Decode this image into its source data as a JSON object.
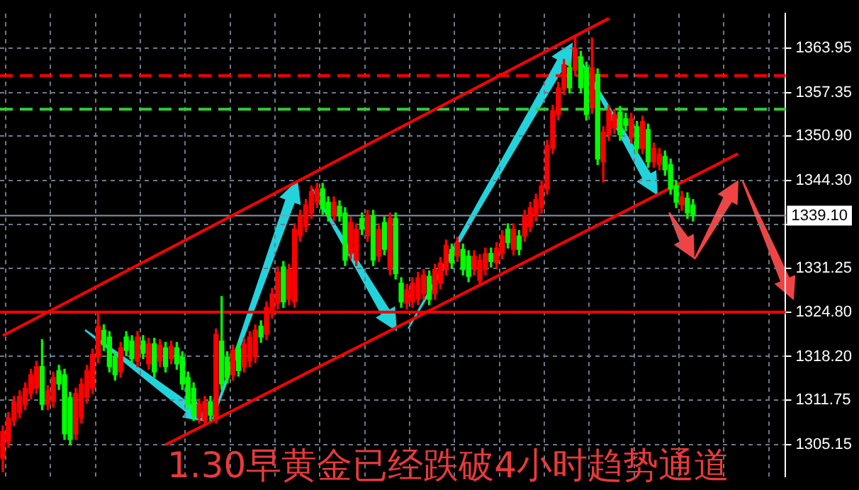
{
  "chart_data": {
    "type": "candlestick",
    "title": "1.30早黄金已经跌破4小时趋势通道",
    "categories": [
      null,
      null,
      null,
      null,
      null,
      null,
      null,
      null,
      null,
      null,
      null,
      null,
      null,
      null,
      null,
      null,
      null,
      null,
      null,
      null,
      null,
      null,
      null,
      null,
      null,
      null,
      null,
      null,
      null,
      null,
      null,
      null,
      null,
      null,
      null,
      null,
      null,
      null,
      null,
      null,
      null,
      null,
      null,
      null,
      null,
      null,
      null,
      null,
      null,
      null,
      null,
      null,
      null,
      null,
      null,
      null,
      null,
      null,
      null,
      null,
      null,
      null,
      null,
      null,
      null,
      null,
      null,
      null,
      null,
      null,
      null,
      null,
      null,
      null,
      null,
      null,
      null,
      null,
      null,
      null,
      null,
      null,
      null,
      null,
      null,
      null,
      null,
      null,
      null,
      null,
      null,
      null,
      null,
      null,
      null,
      null,
      null,
      null,
      null,
      null,
      null,
      null,
      null,
      null,
      null,
      null,
      null,
      null,
      null,
      null,
      null,
      null,
      null,
      null,
      null,
      null,
      null,
      null,
      null,
      null,
      null,
      null,
      null,
      null,
      null,
      null,
      null,
      null,
      null,
      null,
      null,
      null,
      null,
      null,
      null,
      null,
      null,
      null,
      null,
      null
    ],
    "ohlc": [
      [
        1303.1,
        1307.9,
        1301.1,
        1307.1
      ],
      [
        1305.5,
        1309.9,
        1304.7,
        1309.1
      ],
      [
        1308.7,
        1312.3,
        1307.9,
        1311.5
      ],
      [
        1309.9,
        1313.1,
        1309.1,
        1312.3
      ],
      [
        1311.1,
        1314.3,
        1310.3,
        1313.5
      ],
      [
        1312.7,
        1316.3,
        1311.9,
        1315.5
      ],
      [
        1313.5,
        1317.5,
        1312.7,
        1316.7
      ],
      [
        1316.7,
        1320.7,
        1310.3,
        1311.1
      ],
      [
        1311.1,
        1313.9,
        1310.3,
        1313.1
      ],
      [
        1311.5,
        1315.9,
        1310.7,
        1315.1
      ],
      [
        1316.1,
        1316.9,
        1313.3,
        1314.1
      ],
      [
        1315.5,
        1316.3,
        1305.9,
        1306.7
      ],
      [
        1312.1,
        1312.9,
        1305.1,
        1305.9
      ],
      [
        1306.7,
        1313.5,
        1305.9,
        1312.7
      ],
      [
        1309.1,
        1314.9,
        1308.3,
        1314.1
      ],
      [
        1312.1,
        1316.9,
        1311.3,
        1316.1
      ],
      [
        1313.5,
        1319.3,
        1312.7,
        1318.5
      ],
      [
        1318.1,
        1324.7,
        1317.3,
        1322.7
      ],
      [
        1322.1,
        1322.9,
        1319.1,
        1319.9
      ],
      [
        1321.1,
        1321.9,
        1315.9,
        1316.7
      ],
      [
        1318.1,
        1318.9,
        1314.7,
        1315.5
      ],
      [
        1315.9,
        1320.3,
        1315.1,
        1319.5
      ],
      [
        1321.1,
        1321.9,
        1318.3,
        1319.1
      ],
      [
        1320.5,
        1321.3,
        1317.1,
        1317.9
      ],
      [
        1317.5,
        1321.9,
        1316.7,
        1321.1
      ],
      [
        1320.5,
        1321.3,
        1317.9,
        1318.7
      ],
      [
        1317.1,
        1320.9,
        1316.3,
        1320.1
      ],
      [
        1320.1,
        1320.9,
        1315.1,
        1315.9
      ],
      [
        1317.5,
        1320.7,
        1316.7,
        1319.9
      ],
      [
        1319.5,
        1320.3,
        1315.9,
        1316.7
      ],
      [
        1317.9,
        1320.5,
        1317.1,
        1319.7
      ],
      [
        1319.5,
        1320.3,
        1316.3,
        1317.1
      ],
      [
        1318.1,
        1318.9,
        1313.3,
        1314.1
      ],
      [
        1315.1,
        1315.9,
        1310.3,
        1311.1
      ],
      [
        1313.5,
        1314.3,
        1308.7,
        1309.5
      ],
      [
        1309.1,
        1311.9,
        1308.3,
        1311.1
      ],
      [
        1308.7,
        1312.3,
        1307.9,
        1311.5
      ],
      [
        1311.5,
        1312.3,
        1308.7,
        1309.5
      ],
      [
        1309.1,
        1322.3,
        1308.3,
        1321.5
      ],
      [
        1320.5,
        1327.1,
        1313.3,
        1314.1
      ],
      [
        1318.1,
        1318.9,
        1314.3,
        1315.1
      ],
      [
        1315.5,
        1319.9,
        1314.7,
        1319.1
      ],
      [
        1319.5,
        1320.3,
        1315.3,
        1316.1
      ],
      [
        1316.7,
        1320.9,
        1315.9,
        1320.1
      ],
      [
        1317.5,
        1321.9,
        1316.7,
        1321.1
      ],
      [
        1318.1,
        1322.9,
        1317.3,
        1322.1
      ],
      [
        1322.7,
        1323.5,
        1320.3,
        1321.1
      ],
      [
        1321.5,
        1326.3,
        1320.7,
        1325.5
      ],
      [
        1324.7,
        1328.3,
        1323.9,
        1327.5
      ],
      [
        1326.1,
        1331.5,
        1325.3,
        1330.7
      ],
      [
        1331.5,
        1332.3,
        1325.5,
        1326.3
      ],
      [
        1326.7,
        1331.9,
        1325.9,
        1331.1
      ],
      [
        1326.3,
        1337.9,
        1325.5,
        1337.1
      ],
      [
        1336.1,
        1339.9,
        1335.3,
        1339.1
      ],
      [
        1337.5,
        1341.5,
        1336.7,
        1340.7
      ],
      [
        1339.5,
        1343.5,
        1338.7,
        1342.7
      ],
      [
        1341.1,
        1343.9,
        1340.3,
        1343.1
      ],
      [
        1343.1,
        1343.9,
        1339.3,
        1340.1
      ],
      [
        1341.1,
        1341.9,
        1338.3,
        1339.1
      ],
      [
        1339.1,
        1341.9,
        1338.3,
        1341.1
      ],
      [
        1340.5,
        1341.3,
        1338.3,
        1339.1
      ],
      [
        1339.5,
        1340.3,
        1331.7,
        1332.5
      ],
      [
        1333.5,
        1338.9,
        1332.7,
        1338.1
      ],
      [
        1332.5,
        1337.9,
        1331.7,
        1337.1
      ],
      [
        1338.7,
        1339.5,
        1336.3,
        1337.1
      ],
      [
        1336.1,
        1339.9,
        1335.3,
        1339.1
      ],
      [
        1339.1,
        1339.9,
        1331.7,
        1332.5
      ],
      [
        1333.1,
        1337.9,
        1332.3,
        1337.1
      ],
      [
        1338.1,
        1338.9,
        1333.3,
        1334.1
      ],
      [
        1331.1,
        1339.5,
        1330.3,
        1338.7
      ],
      [
        1338.7,
        1339.5,
        1329.7,
        1330.5
      ],
      [
        1329.1,
        1329.9,
        1325.5,
        1326.3
      ],
      [
        1326.1,
        1328.9,
        1325.3,
        1328.1
      ],
      [
        1326.3,
        1329.9,
        1325.5,
        1329.1
      ],
      [
        1326.7,
        1330.7,
        1325.9,
        1329.9
      ],
      [
        1327.5,
        1331.1,
        1326.7,
        1330.3
      ],
      [
        1330.1,
        1330.9,
        1325.9,
        1326.7
      ],
      [
        1327.5,
        1331.9,
        1326.7,
        1331.1
      ],
      [
        1329.1,
        1332.9,
        1328.3,
        1332.1
      ],
      [
        1331.1,
        1335.5,
        1330.3,
        1334.7
      ],
      [
        1334.1,
        1334.9,
        1331.3,
        1332.1
      ],
      [
        1333.1,
        1335.9,
        1332.3,
        1335.1
      ],
      [
        1334.1,
        1334.9,
        1330.3,
        1331.1
      ],
      [
        1333.1,
        1333.9,
        1329.3,
        1330.1
      ],
      [
        1331.1,
        1333.9,
        1330.3,
        1333.1
      ],
      [
        1329.5,
        1333.3,
        1328.7,
        1332.5
      ],
      [
        1331.1,
        1334.3,
        1330.3,
        1333.5
      ],
      [
        1333.5,
        1334.3,
        1331.5,
        1332.3
      ],
      [
        1332.1,
        1335.1,
        1331.3,
        1334.3
      ],
      [
        1333.5,
        1336.9,
        1332.7,
        1336.1
      ],
      [
        1337.1,
        1337.9,
        1334.3,
        1335.1
      ],
      [
        1334.1,
        1337.9,
        1333.3,
        1337.1
      ],
      [
        1336.1,
        1336.9,
        1333.3,
        1334.1
      ],
      [
        1336.1,
        1339.9,
        1335.3,
        1339.1
      ],
      [
        1337.5,
        1341.1,
        1336.7,
        1340.3
      ],
      [
        1339.1,
        1342.3,
        1338.3,
        1341.5
      ],
      [
        1340.3,
        1344.3,
        1339.5,
        1343.5
      ],
      [
        1343.1,
        1350.3,
        1342.3,
        1349.5
      ],
      [
        1349.1,
        1355.5,
        1348.3,
        1354.7
      ],
      [
        1354.1,
        1358.9,
        1353.3,
        1358.1
      ],
      [
        1357.9,
        1362.3,
        1357.1,
        1361.5
      ],
      [
        1361.1,
        1361.9,
        1357.3,
        1358.1
      ],
      [
        1360.7,
        1365.9,
        1359.9,
        1363.9
      ],
      [
        1362.7,
        1363.5,
        1357.3,
        1358.1
      ],
      [
        1361.1,
        1361.9,
        1353.3,
        1354.1
      ],
      [
        1355.1,
        1365.5,
        1354.3,
        1361.1
      ],
      [
        1360.1,
        1360.9,
        1346.7,
        1347.5
      ],
      [
        1347.1,
        1352.3,
        1344.1,
        1351.5
      ],
      [
        1351.1,
        1355.5,
        1350.3,
        1354.7
      ],
      [
        1352.1,
        1354.9,
        1351.3,
        1354.1
      ],
      [
        1354.5,
        1355.3,
        1350.3,
        1351.1
      ],
      [
        1353.5,
        1354.3,
        1351.7,
        1352.5
      ],
      [
        1350.7,
        1354.3,
        1349.9,
        1353.5
      ],
      [
        1352.3,
        1353.1,
        1348.3,
        1349.1
      ],
      [
        1349.1,
        1353.9,
        1348.3,
        1353.1
      ],
      [
        1351.9,
        1352.7,
        1346.3,
        1347.1
      ],
      [
        1347.1,
        1349.9,
        1346.3,
        1349.1
      ],
      [
        1346.7,
        1349.1,
        1345.9,
        1348.3
      ],
      [
        1347.9,
        1348.7,
        1345.1,
        1345.9
      ],
      [
        1346.7,
        1347.5,
        1342.3,
        1343.1
      ],
      [
        1343.5,
        1344.3,
        1340.3,
        1341.1
      ],
      [
        1340.7,
        1342.7,
        1339.9,
        1341.9
      ],
      [
        1341.7,
        1342.5,
        1338.7,
        1339.5
      ],
      [
        1340.7,
        1341.5,
        1338.3,
        1339.1
      ],
      null,
      null,
      null,
      null,
      null,
      null,
      null,
      null,
      null,
      null,
      null,
      null,
      null,
      null,
      null,
      null
    ],
    "colors": [
      "#ff0000",
      "#ff0000",
      "#ff0000",
      "#ff0000",
      "#ff0000",
      "#ff0000",
      "#ff0000",
      "#00ff00",
      "#ff0000",
      "#ff0000",
      "#00ff00",
      "#00ff00",
      "#00ff00",
      "#ff0000",
      "#ff0000",
      "#ff0000",
      "#ff0000",
      "#ff0000",
      "#00ff00",
      "#00ff00",
      "#00ff00",
      "#ff0000",
      "#00ff00",
      "#00ff00",
      "#ff0000",
      "#00ff00",
      "#ff0000",
      "#00ff00",
      "#ff0000",
      "#00ff00",
      "#ff0000",
      "#00ff00",
      "#00ff00",
      "#00ff00",
      "#00ff00",
      "#ff0000",
      "#ff0000",
      "#00ff00",
      "#ff0000",
      "#00ff00",
      "#00ff00",
      "#ff0000",
      "#00ff00",
      "#ff0000",
      "#ff0000",
      "#ff0000",
      "#00ff00",
      "#ff0000",
      "#ff0000",
      "#ff0000",
      "#00ff00",
      "#ff0000",
      "#ff0000",
      "#ff0000",
      "#ff0000",
      "#ff0000",
      "#ff0000",
      "#00ff00",
      "#00ff00",
      "#ff0000",
      "#00ff00",
      "#00ff00",
      "#ff0000",
      "#ff0000",
      "#00ff00",
      "#ff0000",
      "#00ff00",
      "#ff0000",
      "#00ff00",
      "#ff0000",
      "#00ff00",
      "#00ff00",
      "#ff0000",
      "#ff0000",
      "#ff0000",
      "#ff0000",
      "#00ff00",
      "#ff0000",
      "#ff0000",
      "#ff0000",
      "#00ff00",
      "#ff0000",
      "#00ff00",
      "#00ff00",
      "#ff0000",
      "#ff0000",
      "#ff0000",
      "#00ff00",
      "#ff0000",
      "#ff0000",
      "#00ff00",
      "#ff0000",
      "#00ff00",
      "#ff0000",
      "#ff0000",
      "#ff0000",
      "#ff0000",
      "#ff0000",
      "#ff0000",
      "#ff0000",
      "#ff0000",
      "#00ff00",
      "#ff0000",
      "#00ff00",
      "#00ff00",
      "#ff0000",
      "#00ff00",
      "#ff0000",
      "#ff0000",
      "#ff0000",
      "#00ff00",
      "#00ff00",
      "#ff0000",
      "#00ff00",
      "#ff0000",
      "#00ff00",
      "#ff0000",
      "#ff0000",
      "#00ff00",
      "#00ff00",
      "#00ff00",
      "#ff0000",
      "#00ff00",
      "#00ff00",
      null,
      null,
      null,
      null,
      null,
      null,
      null,
      null,
      null,
      null,
      null,
      null,
      null,
      null,
      null,
      null
    ],
    "series": [
      {
        "type": "line",
        "color": "#ff0000",
        "values": [
          1321.3,
          null,
          null,
          null,
          null,
          null,
          null,
          null,
          null,
          null,
          null,
          null,
          null,
          null,
          null,
          null,
          null,
          null,
          null,
          null,
          null,
          null,
          null,
          null,
          null,
          null,
          null,
          null,
          null,
          null,
          null,
          null,
          null,
          null,
          null,
          null,
          null,
          null,
          null,
          null,
          null,
          null,
          null,
          null,
          null,
          null,
          null,
          null,
          null,
          null,
          null,
          null,
          null,
          null,
          null,
          null,
          null,
          null,
          null,
          null,
          null,
          null,
          null,
          null,
          null,
          null,
          null,
          null,
          null,
          null,
          null,
          null,
          null,
          null,
          null,
          null,
          null,
          null,
          null,
          null,
          null,
          null,
          null,
          null,
          null,
          null,
          null,
          null,
          null,
          null,
          null,
          null,
          null,
          null,
          null,
          null,
          null,
          null,
          null,
          null,
          null,
          null,
          null,
          null,
          null,
          null,
          null,
          null,
          1368.4,
          null,
          null,
          null,
          null,
          null,
          null,
          null,
          null,
          null,
          null,
          null,
          null,
          null,
          null,
          null,
          null,
          null,
          null,
          null,
          null,
          null,
          null,
          null,
          null,
          null,
          null,
          null,
          null,
          null,
          null,
          null
        ]
      },
      {
        "type": "line",
        "color": "#ff0000",
        "values": [
          null,
          null,
          null,
          null,
          null,
          null,
          null,
          null,
          null,
          null,
          null,
          null,
          null,
          null,
          null,
          null,
          null,
          null,
          null,
          null,
          null,
          null,
          null,
          null,
          null,
          null,
          null,
          null,
          null,
          1305.1,
          null,
          null,
          null,
          null,
          null,
          null,
          null,
          null,
          null,
          null,
          null,
          null,
          null,
          null,
          null,
          null,
          null,
          null,
          null,
          null,
          null,
          null,
          null,
          null,
          null,
          null,
          null,
          null,
          null,
          null,
          null,
          null,
          null,
          null,
          null,
          null,
          null,
          null,
          null,
          null,
          null,
          null,
          null,
          null,
          null,
          null,
          null,
          null,
          null,
          null,
          null,
          null,
          null,
          null,
          null,
          null,
          null,
          null,
          null,
          null,
          null,
          null,
          null,
          null,
          null,
          null,
          null,
          null,
          null,
          null,
          null,
          null,
          null,
          null,
          null,
          null,
          null,
          null,
          null,
          null,
          null,
          null,
          null,
          null,
          null,
          null,
          null,
          null,
          null,
          null,
          null,
          null,
          null,
          null,
          null,
          null,
          null,
          null,
          null,
          null,
          null,
          1348.3,
          null,
          null,
          null,
          null,
          null,
          null,
          null,
          null
        ]
      }
    ],
    "ylim": [
      1300.4,
      1369.1
    ],
    "yticks": [
      1305.15,
      1311.75,
      {
        "value": 1318.2,
        "label": "1318.20"
      },
      {
        "value": 1324.8,
        "label": "1324.80"
      },
      1331.25,
      {
        "value": 1337.85,
        "label": null
      },
      {
        "value": 1344.3,
        "label": "1344.30"
      },
      {
        "value": 1350.9,
        "label": "1350.90"
      },
      1357.35,
      1363.95
    ],
    "ref_lines": [
      {
        "axis": "y",
        "value": 1359.9,
        "color": "#ff0000",
        "line_style": "dashed"
      },
      {
        "axis": "y",
        "value": 1354.9,
        "color": "#33cc33",
        "line_style": "dashed"
      },
      {
        "axis": "y",
        "value": 1324.8,
        "color": "#ff0000"
      },
      {
        "axis": "y",
        "value": 1339.1,
        "label": "1339.10",
        "color": "#8a96a6"
      }
    ],
    "grid": true
  }
}
